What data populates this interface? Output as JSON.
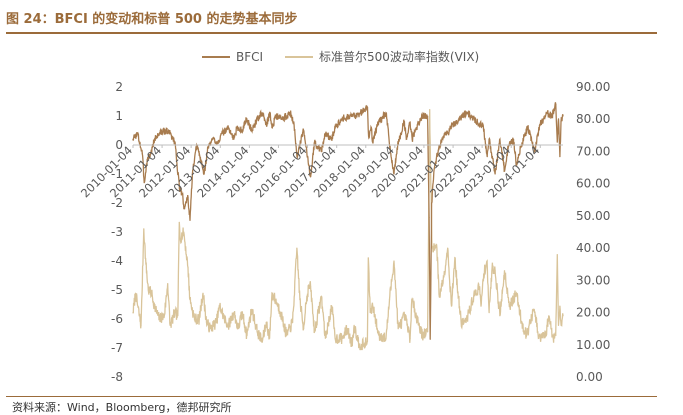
{
  "header": {
    "title": "图 24：BFCI 的变动和标普 500 的走势基本同步"
  },
  "footer": {
    "source": "资料来源：Wind，Bloomberg，德邦研究所"
  },
  "colors": {
    "accent": "#9b6b3a",
    "bfci": "#a87c4f",
    "vix": "#d9c49a",
    "axis_text": "#595959"
  },
  "chart_data": {
    "type": "line",
    "title": "",
    "x_type": "date",
    "x_range": [
      "2010-01-04",
      "2024-10-15"
    ],
    "x_tick_labels": [
      "2010-01-04",
      "2011-01-04",
      "2012-01-04",
      "2013-01-04",
      "2014-01-04",
      "2015-01-04",
      "2016-01-04",
      "2017-01-04",
      "2018-01-04",
      "2019-01-04",
      "2020-01-04",
      "2021-01-04",
      "2022-01-04",
      "2023-01-04",
      "2024-01-04"
    ],
    "y_left": {
      "range": [
        -8,
        2
      ],
      "ticks": [
        "-8",
        "-7",
        "-6",
        "-5",
        "-4",
        "-3",
        "-2",
        "-1",
        "0",
        "1",
        "2"
      ]
    },
    "y_right": {
      "range": [
        0,
        90
      ],
      "ticks": [
        "0.00",
        "10.00",
        "20.00",
        "30.00",
        "40.00",
        "50.00",
        "60.00",
        "70.00",
        "80.00",
        "90.00"
      ]
    },
    "legend": {
      "placement": "top-center"
    },
    "grid": false,
    "series": [
      {
        "name": "BFCI",
        "axis": "left",
        "points": [
          [
            "2010-01-04",
            0.2
          ],
          [
            "2010-03-01",
            0.4
          ],
          [
            "2010-05-01",
            -0.3
          ],
          [
            "2010-05-25",
            -1.3
          ],
          [
            "2010-07-01",
            -0.5
          ],
          [
            "2010-08-15",
            -0.3
          ],
          [
            "2010-10-01",
            0.2
          ],
          [
            "2010-12-01",
            0.4
          ],
          [
            "2011-02-15",
            0.5
          ],
          [
            "2011-04-15",
            0.4
          ],
          [
            "2011-06-15",
            0.1
          ],
          [
            "2011-08-10",
            -1.5
          ],
          [
            "2011-09-20",
            -1.7
          ],
          [
            "2011-10-05",
            -2.2
          ],
          [
            "2011-11-25",
            -1.8
          ],
          [
            "2011-12-20",
            -2.6
          ],
          [
            "2012-01-20",
            -1.0
          ],
          [
            "2012-03-15",
            0.0
          ],
          [
            "2012-05-20",
            -0.7
          ],
          [
            "2012-06-15",
            -1.0
          ],
          [
            "2012-08-01",
            -0.1
          ],
          [
            "2012-10-01",
            0.2
          ],
          [
            "2012-12-01",
            0.1
          ],
          [
            "2013-02-01",
            0.4
          ],
          [
            "2013-04-15",
            0.6
          ],
          [
            "2013-06-24",
            0.2
          ],
          [
            "2013-08-01",
            0.6
          ],
          [
            "2013-10-01",
            0.5
          ],
          [
            "2013-12-01",
            0.9
          ],
          [
            "2014-02-03",
            0.5
          ],
          [
            "2014-04-15",
            0.9
          ],
          [
            "2014-06-15",
            1.1
          ],
          [
            "2014-08-05",
            0.7
          ],
          [
            "2014-09-20",
            1.1
          ],
          [
            "2014-10-15",
            0.6
          ],
          [
            "2014-12-01",
            1.0
          ],
          [
            "2015-03-01",
            0.9
          ],
          [
            "2015-06-01",
            1.1
          ],
          [
            "2015-07-15",
            0.8
          ],
          [
            "2015-08-25",
            -0.4
          ],
          [
            "2015-10-01",
            0.0
          ],
          [
            "2015-11-15",
            0.5
          ],
          [
            "2016-01-20",
            -0.7
          ],
          [
            "2016-02-11",
            -1.1
          ],
          [
            "2016-04-01",
            0.1
          ],
          [
            "2016-06-27",
            -0.2
          ],
          [
            "2016-08-15",
            0.4
          ],
          [
            "2016-11-01",
            0.2
          ],
          [
            "2016-12-15",
            0.6
          ],
          [
            "2017-03-01",
            0.9
          ],
          [
            "2017-06-01",
            1.0
          ],
          [
            "2017-09-01",
            1.0
          ],
          [
            "2017-12-15",
            1.2
          ],
          [
            "2018-01-26",
            1.3
          ],
          [
            "2018-02-08",
            0.3
          ],
          [
            "2018-03-15",
            0.6
          ],
          [
            "2018-04-01",
            0.1
          ],
          [
            "2018-06-15",
            0.8
          ],
          [
            "2018-09-20",
            1.1
          ],
          [
            "2018-10-29",
            0.0
          ],
          [
            "2018-12-24",
            -1.0
          ],
          [
            "2019-02-01",
            -0.1
          ],
          [
            "2019-04-30",
            0.8
          ],
          [
            "2019-06-01",
            0.2
          ],
          [
            "2019-07-15",
            0.8
          ],
          [
            "2019-08-10",
            0.2
          ],
          [
            "2019-10-01",
            0.6
          ],
          [
            "2019-12-15",
            1.0
          ],
          [
            "2020-02-19",
            1.0
          ],
          [
            "2020-03-09",
            -2.5
          ],
          [
            "2020-03-23",
            -6.7
          ],
          [
            "2020-04-10",
            -2.0
          ],
          [
            "2020-05-15",
            -0.8
          ],
          [
            "2020-07-01",
            -0.2
          ],
          [
            "2020-09-01",
            0.3
          ],
          [
            "2020-11-01",
            0.4
          ],
          [
            "2020-12-15",
            0.7
          ],
          [
            "2021-03-01",
            0.8
          ],
          [
            "2021-06-01",
            1.1
          ],
          [
            "2021-09-01",
            1.0
          ],
          [
            "2021-12-01",
            0.7
          ],
          [
            "2022-01-15",
            0.7
          ],
          [
            "2022-03-08",
            -0.4
          ],
          [
            "2022-04-01",
            0.2
          ],
          [
            "2022-06-16",
            -1.0
          ],
          [
            "2022-08-15",
            0.2
          ],
          [
            "2022-10-12",
            -0.9
          ],
          [
            "2022-12-01",
            0.0
          ],
          [
            "2023-02-01",
            0.2
          ],
          [
            "2023-03-13",
            -0.7
          ],
          [
            "2023-05-01",
            -0.1
          ],
          [
            "2023-07-31",
            0.6
          ],
          [
            "2023-10-27",
            -0.2
          ],
          [
            "2023-12-29",
            0.7
          ],
          [
            "2024-03-31",
            1.1
          ],
          [
            "2024-06-01",
            1.0
          ],
          [
            "2024-07-16",
            1.4
          ],
          [
            "2024-08-05",
            0.1
          ],
          [
            "2024-08-20",
            0.9
          ],
          [
            "2024-09-06",
            -0.4
          ],
          [
            "2024-09-20",
            0.8
          ],
          [
            "2024-10-15",
            1.0
          ]
        ]
      },
      {
        "name": "标准普尔500波动率指数(VIX)",
        "axis": "right",
        "points": [
          [
            "2010-01-04",
            20
          ],
          [
            "2010-02-05",
            26
          ],
          [
            "2010-04-15",
            16
          ],
          [
            "2010-05-20",
            46
          ],
          [
            "2010-06-15",
            35
          ],
          [
            "2010-07-15",
            27
          ],
          [
            "2010-08-25",
            26
          ],
          [
            "2010-10-01",
            22
          ],
          [
            "2010-12-01",
            18
          ],
          [
            "2011-02-01",
            19
          ],
          [
            "2011-03-16",
            29
          ],
          [
            "2011-04-15",
            16
          ],
          [
            "2011-06-15",
            20
          ],
          [
            "2011-07-20",
            19
          ],
          [
            "2011-08-08",
            48
          ],
          [
            "2011-08-20",
            43
          ],
          [
            "2011-10-03",
            45
          ],
          [
            "2011-11-25",
            34
          ],
          [
            "2011-12-20",
            24
          ],
          [
            "2012-02-15",
            18
          ],
          [
            "2012-04-15",
            18
          ],
          [
            "2012-06-01",
            26
          ],
          [
            "2012-07-15",
            17
          ],
          [
            "2012-09-01",
            15
          ],
          [
            "2012-11-15",
            17
          ],
          [
            "2012-12-28",
            22
          ],
          [
            "2013-02-25",
            18
          ],
          [
            "2013-04-15",
            16
          ],
          [
            "2013-06-24",
            20
          ],
          [
            "2013-08-15",
            15
          ],
          [
            "2013-10-08",
            20
          ],
          [
            "2013-12-01",
            13
          ],
          [
            "2014-02-03",
            21
          ],
          [
            "2014-04-15",
            14
          ],
          [
            "2014-06-15",
            11
          ],
          [
            "2014-08-05",
            17
          ],
          [
            "2014-09-15",
            12
          ],
          [
            "2014-10-15",
            26
          ],
          [
            "2014-12-16",
            23
          ],
          [
            "2015-02-01",
            20
          ],
          [
            "2015-04-15",
            13
          ],
          [
            "2015-07-01",
            17
          ],
          [
            "2015-08-24",
            40
          ],
          [
            "2015-09-30",
            24
          ],
          [
            "2015-11-15",
            15
          ],
          [
            "2015-12-15",
            23
          ],
          [
            "2016-01-20",
            28
          ],
          [
            "2016-02-11",
            28
          ],
          [
            "2016-04-01",
            14
          ],
          [
            "2016-06-27",
            25
          ],
          [
            "2016-08-15",
            12
          ],
          [
            "2016-11-04",
            22
          ],
          [
            "2016-12-15",
            12
          ],
          [
            "2017-03-15",
            12
          ],
          [
            "2017-05-18",
            15
          ],
          [
            "2017-07-15",
            10
          ],
          [
            "2017-08-11",
            16
          ],
          [
            "2017-10-15",
            10
          ],
          [
            "2017-12-15",
            10
          ],
          [
            "2018-01-25",
            11
          ],
          [
            "2018-02-05",
            37
          ],
          [
            "2018-03-01",
            20
          ],
          [
            "2018-04-01",
            22
          ],
          [
            "2018-06-15",
            13
          ],
          [
            "2018-09-15",
            12
          ],
          [
            "2018-10-29",
            24
          ],
          [
            "2018-12-24",
            36
          ],
          [
            "2019-02-15",
            15
          ],
          [
            "2019-05-10",
            19
          ],
          [
            "2019-07-15",
            12
          ],
          [
            "2019-08-05",
            24
          ],
          [
            "2019-10-01",
            19
          ],
          [
            "2019-12-15",
            13
          ],
          [
            "2020-02-19",
            14
          ],
          [
            "2020-03-16",
            83
          ],
          [
            "2020-04-15",
            40
          ],
          [
            "2020-06-11",
            41
          ],
          [
            "2020-07-15",
            25
          ],
          [
            "2020-09-08",
            31
          ],
          [
            "2020-10-28",
            40
          ],
          [
            "2020-12-15",
            22
          ],
          [
            "2021-01-27",
            37
          ],
          [
            "2021-02-26",
            28
          ],
          [
            "2021-04-15",
            17
          ],
          [
            "2021-06-15",
            17
          ],
          [
            "2021-09-20",
            25
          ],
          [
            "2021-11-30",
            28
          ],
          [
            "2021-12-20",
            22
          ],
          [
            "2022-01-24",
            32
          ],
          [
            "2022-03-07",
            36
          ],
          [
            "2022-04-01",
            20
          ],
          [
            "2022-05-09",
            34
          ],
          [
            "2022-06-16",
            33
          ],
          [
            "2022-08-15",
            19
          ],
          [
            "2022-10-12",
            33
          ],
          [
            "2022-12-15",
            22
          ],
          [
            "2023-03-13",
            26
          ],
          [
            "2023-05-15",
            17
          ],
          [
            "2023-07-15",
            13
          ],
          [
            "2023-10-20",
            21
          ],
          [
            "2023-12-15",
            12
          ],
          [
            "2024-03-15",
            13
          ],
          [
            "2024-04-19",
            19
          ],
          [
            "2024-06-15",
            12
          ],
          [
            "2024-07-15",
            13
          ],
          [
            "2024-08-05",
            38
          ],
          [
            "2024-08-20",
            16
          ],
          [
            "2024-09-06",
            22
          ],
          [
            "2024-09-25",
            16
          ],
          [
            "2024-10-15",
            19
          ]
        ]
      }
    ]
  }
}
